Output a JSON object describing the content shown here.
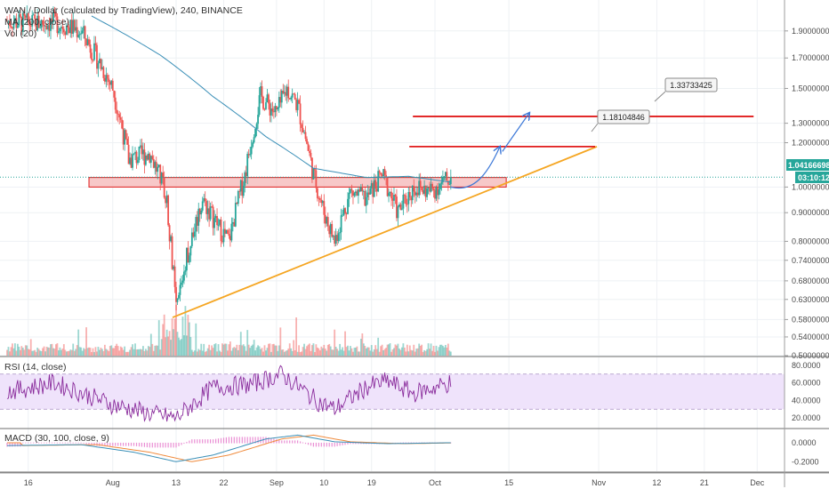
{
  "legend": {
    "main_title": "WAN / Dollar (calculated by TradingView), 240, BINANCE",
    "ma": "MA (200, close)",
    "vol": "Vol (20)",
    "rsi": "RSI (14, close)",
    "macd": "MACD (30, 100, close, 9)"
  },
  "price_badge": {
    "value": "1.04166698",
    "time": "03:10:12"
  },
  "colors": {
    "up": "#26a69a",
    "down": "#ef5350",
    "ma": "#3a8fb7",
    "trendline": "#f5a623",
    "resistance": "#e01b1b",
    "arrow": "#3c78d8",
    "zone_fill": "#f4b6b6",
    "rsi_fill": "#efe3fb",
    "rsi_line": "#8a2c9c"
  },
  "chart_data": [
    {
      "type": "candlestick",
      "title": "WAN / Dollar (calculated by TradingView), 240, BINANCE",
      "y_axis_ticks": [
        "1.90000000",
        "1.70000000",
        "1.50000000",
        "1.30000000",
        "1.20000000",
        "1.00000000",
        "0.90000000",
        "0.80000000",
        "0.74000000",
        "0.68000000",
        "0.63000000",
        "0.58000000",
        "0.54000000",
        "0.50000000"
      ],
      "x_axis_ticks": [
        "16",
        "Aug",
        "13",
        "22",
        "Sep",
        "10",
        "19",
        "Oct",
        "15",
        "Nov",
        "12",
        "21",
        "Dec"
      ],
      "ylim": [
        0.5,
        2.05
      ],
      "log_scale": true,
      "last_price": 1.04166698,
      "callouts": [
        {
          "label": "1.33733425",
          "price": 1.337
        },
        {
          "label": "1.18104846",
          "price": 1.181
        }
      ],
      "resistance_levels": [
        1.337,
        1.181
      ],
      "support_zone": [
        1.0,
        1.04
      ],
      "ascending_trendline": [
        {
          "date": "Aug 13",
          "price": 0.585
        },
        {
          "date": "Nov",
          "price": 1.181
        }
      ],
      "series": [
        {
          "type": "ohlc",
          "keyframes": [
            [
              "Jul 12",
              1.98
            ],
            [
              "Jul 16",
              1.96
            ],
            [
              "Jul 21",
              1.97
            ],
            [
              "Jul 26",
              1.9
            ],
            [
              "Aug 1",
              1.5
            ],
            [
              "Aug 4",
              1.12
            ],
            [
              "Aug 8",
              1.15
            ],
            [
              "Aug 11",
              0.98
            ],
            [
              "Aug 13",
              0.6
            ],
            [
              "Aug 15",
              0.75
            ],
            [
              "Aug 18",
              0.95
            ],
            [
              "Aug 21",
              0.85
            ],
            [
              "Aug 23",
              0.8
            ],
            [
              "Aug 26",
              1.05
            ],
            [
              "Aug 29",
              1.45
            ],
            [
              "Sep 1",
              1.35
            ],
            [
              "Sep 3",
              1.5
            ],
            [
              "Sep 5",
              1.4
            ],
            [
              "Sep 8",
              1.05
            ],
            [
              "Sep 10",
              0.9
            ],
            [
              "Sep 12",
              0.8
            ],
            [
              "Sep 15",
              0.98
            ],
            [
              "Sep 18",
              0.95
            ],
            [
              "Sep 21",
              1.05
            ],
            [
              "Sep 24",
              0.9
            ],
            [
              "Sep 27",
              1.0
            ],
            [
              "Sep 30",
              0.98
            ],
            [
              "Oct 4",
              1.04
            ]
          ]
        },
        {
          "name": "MA (200, close)",
          "type": "line",
          "keyframes": [
            [
              "Jul 28",
              2.02
            ],
            [
              "Aug 10",
              1.72
            ],
            [
              "Aug 20",
              1.45
            ],
            [
              "Aug 30",
              1.23
            ],
            [
              "Sep 8",
              1.08
            ],
            [
              "Sep 18",
              1.04
            ],
            [
              "Sep 26",
              1.045
            ],
            [
              "Oct 4",
              1.02
            ]
          ]
        }
      ]
    },
    {
      "type": "bar",
      "title": "Vol (20)",
      "note": "volume histogram colored by candle direction"
    },
    {
      "type": "line",
      "title": "RSI (14, close)",
      "y_axis_ticks": [
        "80.0000",
        "60.0000",
        "40.0000",
        "20.0000"
      ],
      "ylim": [
        10,
        88
      ],
      "band": [
        30,
        70
      ],
      "keyframes": [
        [
          "Jul 12",
          50
        ],
        [
          "Jul 21",
          60
        ],
        [
          "Aug 1",
          35
        ],
        [
          "Aug 8",
          25
        ],
        [
          "Aug 13",
          20
        ],
        [
          "Aug 20",
          55
        ],
        [
          "Aug 27",
          58
        ],
        [
          "Sep 2",
          70
        ],
        [
          "Sep 9",
          38
        ],
        [
          "Sep 12",
          30
        ],
        [
          "Sep 18",
          55
        ],
        [
          "Sep 22",
          62
        ],
        [
          "Sep 27",
          48
        ],
        [
          "Oct 4",
          60
        ]
      ]
    },
    {
      "type": "line",
      "title": "MACD (30, 100, close, 9)",
      "y_axis_ticks": [
        "0.0000",
        "-0.2000"
      ],
      "ylim": [
        -0.3,
        0.14
      ],
      "keyframes": [
        [
          "Jul 12",
          -0.03
        ],
        [
          "Jul 26",
          -0.02
        ],
        [
          "Aug 5",
          -0.1
        ],
        [
          "Aug 13",
          -0.2
        ],
        [
          "Aug 20",
          -0.13
        ],
        [
          "Aug 30",
          0.04
        ],
        [
          "Sep 5",
          0.08
        ],
        [
          "Sep 12",
          0.01
        ],
        [
          "Sep 22",
          -0.01
        ],
        [
          "Oct 4",
          0.0
        ]
      ]
    }
  ]
}
